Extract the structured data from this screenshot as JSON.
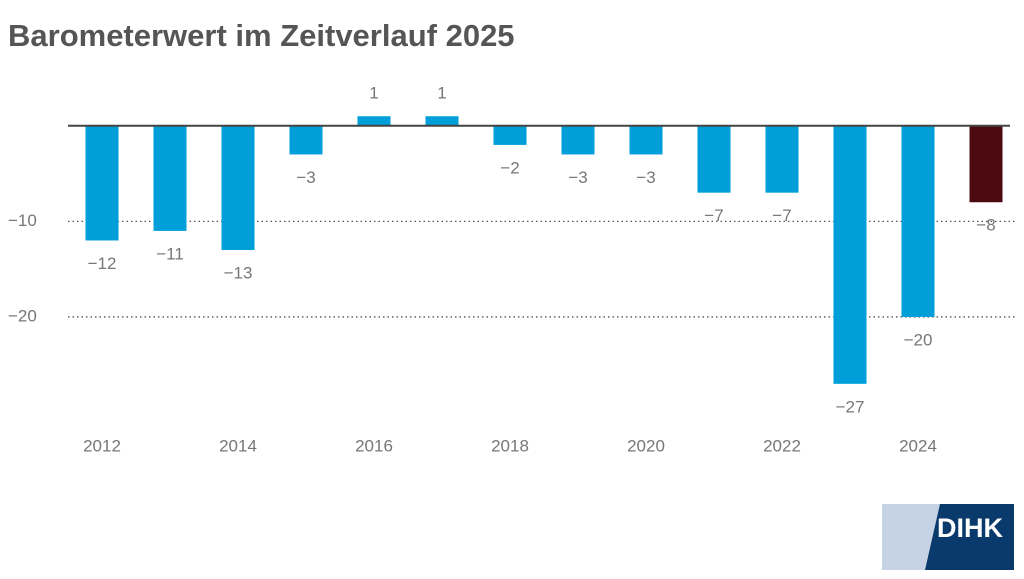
{
  "chart_data": {
    "type": "bar",
    "title": "Barometerwert im Zeitverlauf 2025",
    "categories": [
      "2012",
      null,
      "2014",
      null,
      "2016",
      null,
      "2018",
      null,
      "2020",
      null,
      "2022",
      null,
      "2024",
      null
    ],
    "values": [
      -12,
      -11,
      -13,
      -3,
      1,
      1,
      -2,
      -3,
      -3,
      -7,
      -7,
      -27,
      -20,
      -8
    ],
    "value_labels": [
      "−12",
      "−11",
      "−13",
      "−3",
      "1",
      "1",
      "−2",
      "−3",
      "−3",
      "−7",
      "−7",
      "−27",
      "−20",
      "−8"
    ],
    "colors": [
      "#009fd9",
      "#009fd9",
      "#009fd9",
      "#009fd9",
      "#009fd9",
      "#009fd9",
      "#009fd9",
      "#009fd9",
      "#009fd9",
      "#009fd9",
      "#009fd9",
      "#009fd9",
      "#009fd9",
      "#4a0a10"
    ],
    "ylim": [
      -30,
      5
    ],
    "yticks": [
      {
        "value": -10,
        "label": "−10"
      },
      {
        "value": -20,
        "label": "−20"
      }
    ],
    "grid": true,
    "logo": "DIHK"
  }
}
